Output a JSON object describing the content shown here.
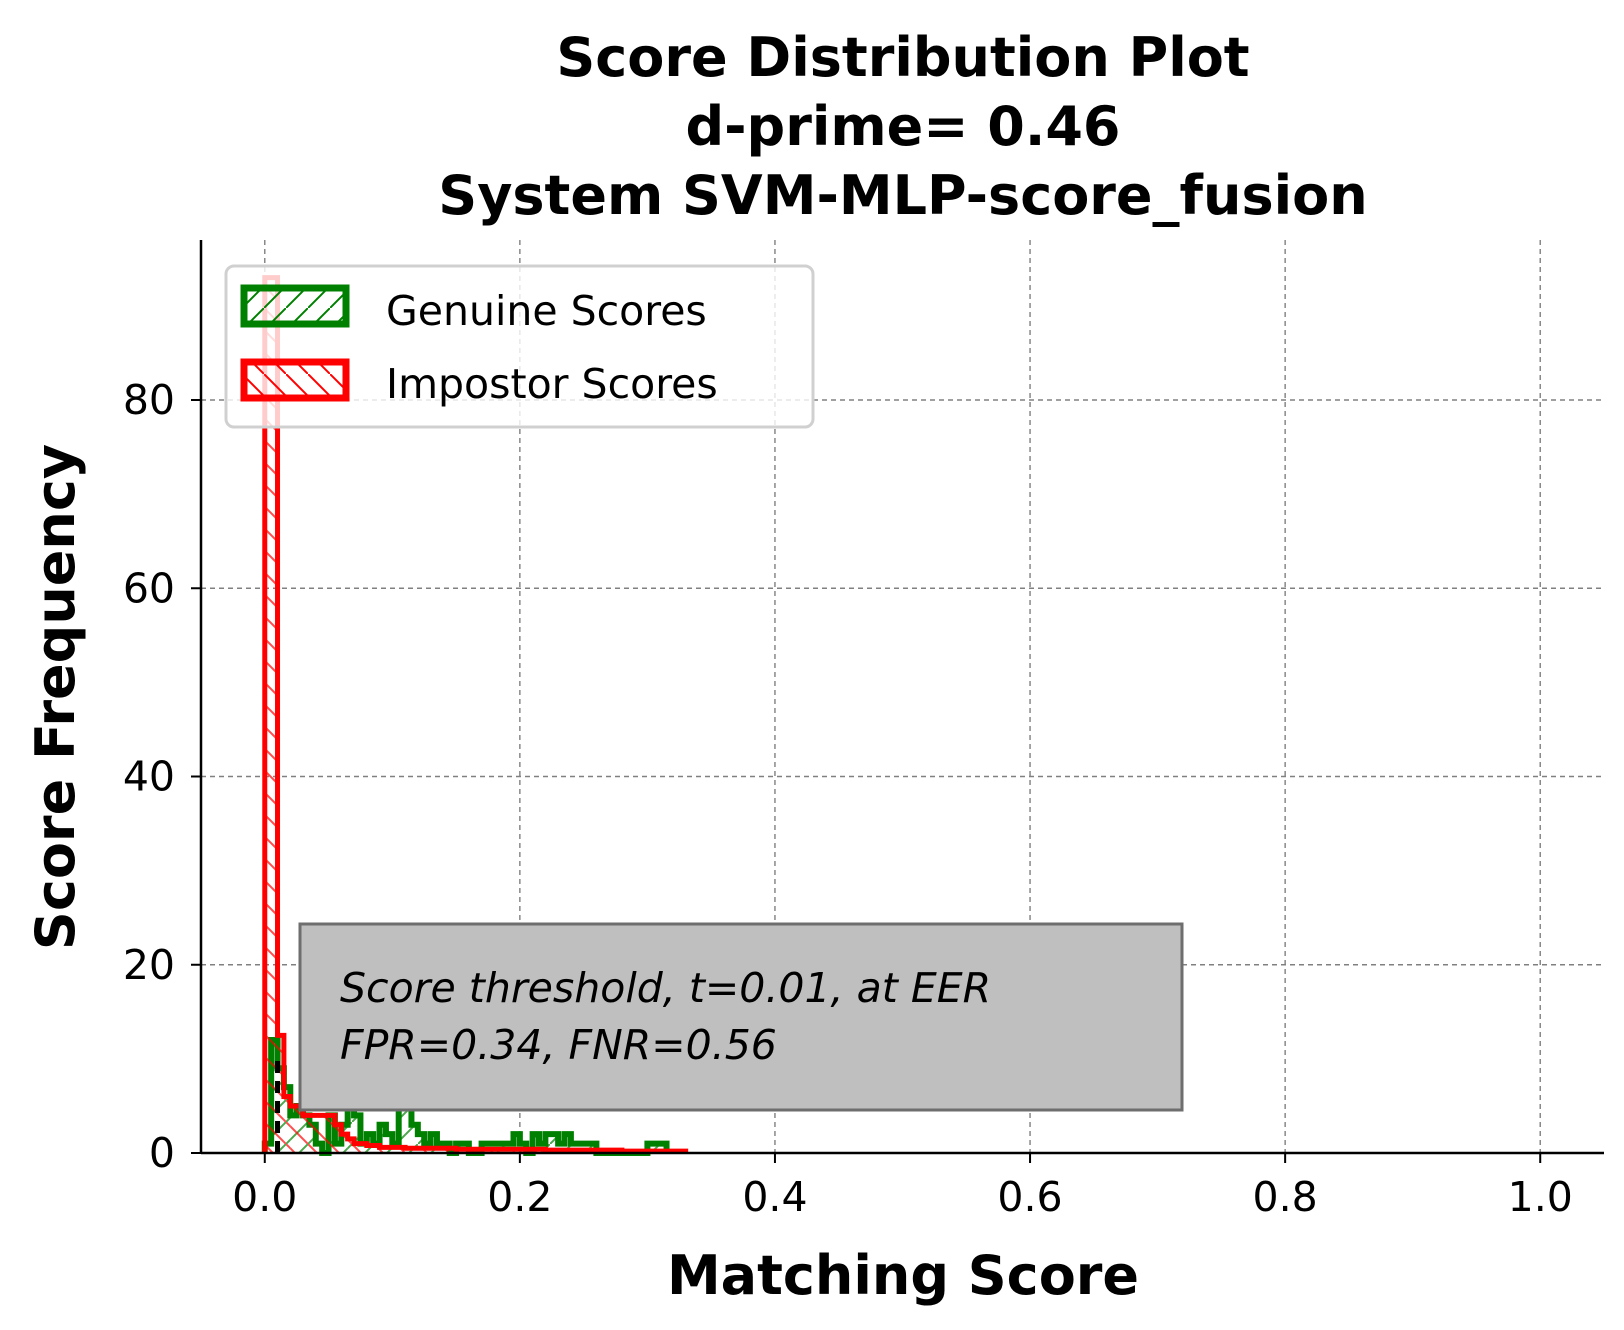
{
  "chart_data": {
    "type": "histogram",
    "title_lines": [
      "Score Distribution Plot",
      "d-prime= 0.46",
      "System SVM-MLP-score_fusion"
    ],
    "xlabel": "Matching Score",
    "ylabel": "Score Frequency",
    "xlim": [
      -0.05,
      1.05
    ],
    "ylim": [
      0,
      97
    ],
    "xticks": [
      0.0,
      0.2,
      0.4,
      0.6,
      0.8,
      1.0
    ],
    "xtick_labels": [
      "0.0",
      "0.2",
      "0.4",
      "0.6",
      "0.8",
      "1.0"
    ],
    "yticks": [
      0,
      20,
      40,
      60,
      80
    ],
    "ytick_labels": [
      "0",
      "20",
      "40",
      "60",
      "80"
    ],
    "grid": true,
    "legend_position": "upper-left",
    "threshold": 0.01,
    "annotation": {
      "line1": "Score threshold, t=0.01, at EER",
      "line2": "FPR=0.34, FNR=0.56"
    },
    "series": [
      {
        "name": "Genuine Scores",
        "color": "#008000",
        "hatch": "/",
        "bins": [
          [
            0.0,
            0.005,
            1
          ],
          [
            0.005,
            0.01,
            12
          ],
          [
            0.01,
            0.015,
            9
          ],
          [
            0.015,
            0.02,
            7
          ],
          [
            0.02,
            0.025,
            4
          ],
          [
            0.025,
            0.03,
            5
          ],
          [
            0.03,
            0.035,
            4
          ],
          [
            0.035,
            0.04,
            3
          ],
          [
            0.04,
            0.045,
            1
          ],
          [
            0.045,
            0.05,
            0
          ],
          [
            0.05,
            0.055,
            4
          ],
          [
            0.055,
            0.06,
            1
          ],
          [
            0.06,
            0.065,
            3
          ],
          [
            0.065,
            0.07,
            6
          ],
          [
            0.07,
            0.075,
            4
          ],
          [
            0.075,
            0.08,
            1
          ],
          [
            0.08,
            0.085,
            2
          ],
          [
            0.085,
            0.09,
            1
          ],
          [
            0.09,
            0.095,
            3
          ],
          [
            0.095,
            0.1,
            2
          ],
          [
            0.1,
            0.105,
            1
          ],
          [
            0.105,
            0.11,
            5
          ],
          [
            0.11,
            0.115,
            5
          ],
          [
            0.115,
            0.12,
            3
          ],
          [
            0.12,
            0.125,
            2
          ],
          [
            0.125,
            0.13,
            1
          ],
          [
            0.13,
            0.135,
            2
          ],
          [
            0.135,
            0.14,
            1
          ],
          [
            0.14,
            0.145,
            1
          ],
          [
            0.145,
            0.15,
            0
          ],
          [
            0.15,
            0.16,
            1
          ],
          [
            0.16,
            0.17,
            0
          ],
          [
            0.17,
            0.18,
            1
          ],
          [
            0.18,
            0.19,
            1
          ],
          [
            0.19,
            0.195,
            1
          ],
          [
            0.195,
            0.2,
            2
          ],
          [
            0.2,
            0.205,
            1
          ],
          [
            0.205,
            0.21,
            0
          ],
          [
            0.21,
            0.215,
            2
          ],
          [
            0.215,
            0.22,
            1
          ],
          [
            0.22,
            0.23,
            2
          ],
          [
            0.23,
            0.235,
            1
          ],
          [
            0.235,
            0.24,
            2
          ],
          [
            0.24,
            0.25,
            1
          ],
          [
            0.25,
            0.26,
            1
          ],
          [
            0.26,
            0.3,
            0
          ],
          [
            0.3,
            0.315,
            1
          ]
        ]
      },
      {
        "name": "Impostor Scores",
        "color": "#ff0000",
        "hatch": "\\",
        "bins": [
          [
            0.0,
            0.01,
            93
          ],
          [
            0.01,
            0.015,
            12.5
          ],
          [
            0.015,
            0.02,
            6
          ],
          [
            0.02,
            0.025,
            5
          ],
          [
            0.025,
            0.03,
            5
          ],
          [
            0.03,
            0.04,
            4
          ],
          [
            0.04,
            0.055,
            4
          ],
          [
            0.055,
            0.06,
            3
          ],
          [
            0.06,
            0.065,
            2
          ],
          [
            0.065,
            0.07,
            1.5
          ],
          [
            0.07,
            0.08,
            1
          ],
          [
            0.08,
            0.09,
            0.8
          ],
          [
            0.09,
            0.11,
            0.6
          ],
          [
            0.11,
            0.15,
            0.5
          ],
          [
            0.15,
            0.22,
            0.4
          ],
          [
            0.22,
            0.28,
            0.3
          ],
          [
            0.28,
            0.33,
            0.2
          ]
        ]
      }
    ]
  }
}
